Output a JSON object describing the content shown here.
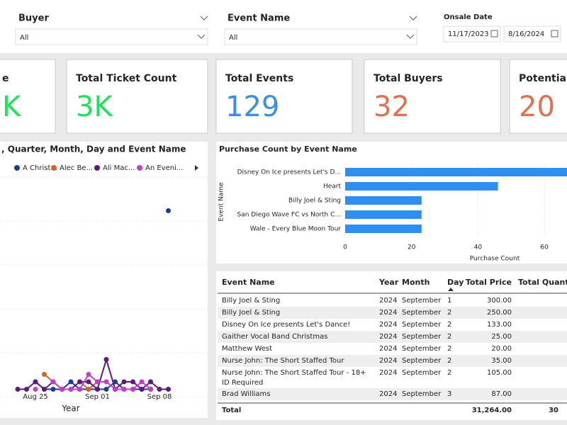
{
  "filters": [
    {
      "label": "Buyer",
      "value": "All"
    },
    {
      "label": "Event Name",
      "value": "All"
    }
  ],
  "date_filter": {
    "label": "Onsale Date",
    "start": "11/17/2023",
    "end": "8/16/2024"
  },
  "cards": [
    {
      "title": "e",
      "value": "K",
      "color": "#1ee35a"
    },
    {
      "title": "Total Ticket Count",
      "value": "3K",
      "color": "#1ee35a"
    },
    {
      "title": "Total Events",
      "value": "129",
      "color": "#3a8ee6"
    },
    {
      "title": "Total Buyers",
      "value": "32",
      "color": "#e07050"
    },
    {
      "title": "Potential I",
      "value": "20",
      "color": "#e07050"
    }
  ],
  "chart_data": [
    {
      "type": "line",
      "title": ", Quarter, Month, Day and Event Name",
      "x_label": "Year",
      "categories": [
        null,
        null,
        null,
        null,
        "Aug 25",
        null,
        null,
        null,
        null,
        null,
        null,
        "Sep 01",
        null,
        null,
        null,
        null,
        null,
        null,
        "Sep 08",
        null,
        null,
        null
      ],
      "ylim": [
        0,
        30
      ],
      "series": [
        {
          "name": "A Christ...",
          "color": "#1a3d8f",
          "values": [
            null,
            null,
            null,
            null,
            2,
            1,
            1,
            1,
            2,
            1,
            1,
            1,
            1,
            2,
            1,
            1,
            1,
            1,
            null,
            25,
            null,
            null
          ]
        },
        {
          "name": "Alec Be...",
          "color": "#d9622b",
          "values": [
            null,
            null,
            null,
            null,
            null,
            3,
            2,
            null,
            null,
            2,
            1,
            2,
            null,
            1,
            1,
            null,
            null,
            1,
            null,
            null,
            null,
            null
          ]
        },
        {
          "name": "Ali Mac...",
          "color": "#5b1a7c",
          "values": [
            null,
            null,
            1,
            1,
            2,
            1,
            2,
            1,
            1,
            2,
            2,
            1,
            5,
            1,
            2,
            2,
            1,
            2,
            1,
            1,
            null,
            null
          ]
        },
        {
          "name": "An Eveni...",
          "color": "#c03ec8",
          "values": [
            null,
            null,
            null,
            null,
            1,
            null,
            2,
            1,
            1,
            1,
            3,
            2,
            2,
            1,
            1,
            1,
            2,
            1,
            null,
            null,
            null,
            null
          ]
        }
      ]
    },
    {
      "type": "bar",
      "title": "Purchase Count by Event Name",
      "x_label": "Purchase Count",
      "y_label": "Event Name",
      "categories": [
        "Disney On Ice presents Let's D...",
        "Heart",
        "Billy Joel & Sting",
        "San Diego Wave FC vs North C...",
        "Wale - Every Blue Moon Tour"
      ],
      "values": [
        68,
        46,
        23,
        23,
        23
      ],
      "color": "#2f8ff0",
      "xlim": [
        0,
        70
      ],
      "xticks": [
        0,
        20,
        40,
        60
      ],
      "grid": true
    }
  ],
  "table": {
    "columns": [
      "Event Name",
      "Year",
      "Month",
      "Day",
      "Total Price",
      "Total Quanti"
    ],
    "rows": [
      [
        "Billy Joel & Sting",
        "2024",
        "September",
        "1",
        "300.00"
      ],
      [
        "Billy Joel & Sting",
        "2024",
        "September",
        "2",
        "250.00"
      ],
      [
        "Disney On Ice presents Let's Dance!",
        "2024",
        "September",
        "2",
        "133.00"
      ],
      [
        "Gaither Vocal Band Christmas",
        "2024",
        "September",
        "2",
        "25.00"
      ],
      [
        "Matthew West",
        "2024",
        "September",
        "2",
        "20.00"
      ],
      [
        "Nurse John: The Short Staffed Tour",
        "2024",
        "September",
        "2",
        "35.00"
      ],
      [
        "Nurse John: The Short Staffed Tour - 18+ ID Required",
        "2024",
        "September",
        "2",
        "105.00"
      ],
      [
        "Brad Williams",
        "2024",
        "September",
        "3",
        "87.00"
      ]
    ],
    "total": [
      "Total",
      "31,264.00",
      "30"
    ]
  }
}
